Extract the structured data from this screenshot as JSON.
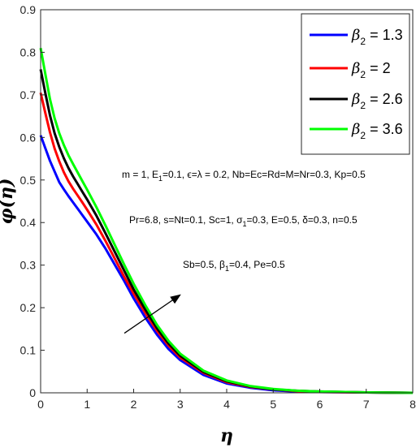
{
  "chart_data": {
    "type": "line",
    "xlabel": "η",
    "ylabel": "φ(η)",
    "xlim": [
      0,
      8
    ],
    "ylim": [
      0,
      0.9
    ],
    "xticks": [
      "0",
      "1",
      "2",
      "3",
      "4",
      "5",
      "6",
      "7",
      "8"
    ],
    "yticks": [
      "0",
      "0.1",
      "0.2",
      "0.3",
      "0.4",
      "0.5",
      "0.6",
      "0.7",
      "0.8",
      "0.9"
    ],
    "grid": false,
    "legend_position": "top-right",
    "x": [
      0,
      0.1,
      0.2,
      0.3,
      0.4,
      0.5,
      0.6,
      0.7,
      0.8,
      0.9,
      1.0,
      1.2,
      1.4,
      1.6,
      1.8,
      2.0,
      2.25,
      2.5,
      2.75,
      3.0,
      3.5,
      4.0,
      4.5,
      5.0,
      5.5,
      6.0,
      7.0,
      8.0
    ],
    "series": [
      {
        "name": "β2 = 1.3",
        "color": "#0000ff",
        "values": [
          0.605,
          0.575,
          0.545,
          0.52,
          0.495,
          0.478,
          0.462,
          0.447,
          0.432,
          0.417,
          0.402,
          0.372,
          0.338,
          0.3,
          0.262,
          0.222,
          0.177,
          0.137,
          0.103,
          0.077,
          0.042,
          0.022,
          0.012,
          0.006,
          0.003,
          0.002,
          0.001,
          0.0
        ]
      },
      {
        "name": "β2 = 2",
        "color": "#ff0000",
        "values": [
          0.705,
          0.658,
          0.612,
          0.574,
          0.544,
          0.518,
          0.497,
          0.479,
          0.463,
          0.447,
          0.43,
          0.395,
          0.356,
          0.314,
          0.272,
          0.233,
          0.188,
          0.146,
          0.111,
          0.083,
          0.047,
          0.025,
          0.014,
          0.008,
          0.004,
          0.002,
          0.001,
          0.0
        ]
      },
      {
        "name": "β2 = 2.6",
        "color": "#000000",
        "values": [
          0.76,
          0.705,
          0.652,
          0.61,
          0.578,
          0.551,
          0.528,
          0.508,
          0.49,
          0.472,
          0.454,
          0.416,
          0.374,
          0.33,
          0.286,
          0.243,
          0.196,
          0.152,
          0.116,
          0.087,
          0.049,
          0.027,
          0.015,
          0.008,
          0.005,
          0.003,
          0.001,
          0.0
        ]
      },
      {
        "name": "β2 = 3.6",
        "color": "#00ff00",
        "values": [
          0.81,
          0.75,
          0.69,
          0.645,
          0.61,
          0.582,
          0.558,
          0.537,
          0.517,
          0.497,
          0.477,
          0.436,
          0.392,
          0.346,
          0.3,
          0.256,
          0.206,
          0.16,
          0.122,
          0.092,
          0.052,
          0.029,
          0.016,
          0.009,
          0.005,
          0.003,
          0.001,
          0.0
        ]
      }
    ],
    "legend": [
      {
        "symbol": "β",
        "sub": "2",
        "rest": " = 1.3",
        "color": "#0000ff"
      },
      {
        "symbol": "β",
        "sub": "2",
        "rest": " = 2",
        "color": "#ff0000"
      },
      {
        "symbol": "β",
        "sub": "2",
        "rest": " = 2.6",
        "color": "#000000"
      },
      {
        "symbol": "β",
        "sub": "2",
        "rest": " = 3.6",
        "color": "#00ff00"
      }
    ],
    "annotations": {
      "line1": {
        "a": "m = 1, E",
        "a_sub": "1",
        "b": "=0.1, ϵ=λ = 0.2, Nb=Ec=Rd=M=Nr=0.3, Kp=0.5"
      },
      "line2": {
        "a": "Pr=6.8, s=Nt=0.1, Sc=1, σ",
        "a_sub": "1",
        "b": "=0.3, E=0.5, δ=0.3, n=0.5"
      },
      "line3": {
        "a": "Sb=0.5, β",
        "a_sub": "1",
        "b": "=0.4, Pe=0.5"
      }
    },
    "arrow": {
      "from": [
        1.8,
        0.14
      ],
      "to": [
        3.0,
        0.23
      ]
    }
  }
}
